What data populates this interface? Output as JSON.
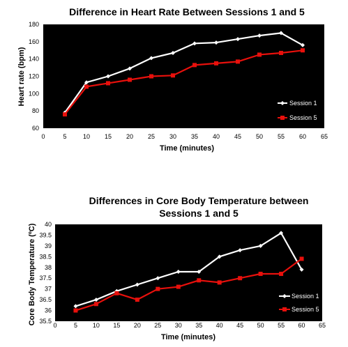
{
  "colors": {
    "session1": "#ffffff",
    "session5": "#e8100c",
    "plot_bg": "#000000"
  },
  "chart_data": [
    {
      "type": "line",
      "title": "Difference in Heart Rate Between Sessions 1 and 5",
      "xlabel": "Time (minutes)",
      "ylabel": "Heart rate (bpm)",
      "xlim": [
        0,
        65
      ],
      "ylim": [
        60,
        180
      ],
      "xticks": [
        "0",
        "5",
        "10",
        "15",
        "20",
        "25",
        "30",
        "35",
        "40",
        "45",
        "50",
        "55",
        "60",
        "65"
      ],
      "yticks": [
        "60",
        "80",
        "100",
        "120",
        "140",
        "160",
        "180"
      ],
      "x": [
        5,
        10,
        15,
        20,
        25,
        30,
        35,
        40,
        45,
        50,
        55,
        60
      ],
      "series": [
        {
          "name": "Session 1",
          "values": [
            78,
            113,
            120,
            129,
            141,
            147,
            158,
            159,
            163,
            167,
            170,
            156
          ]
        },
        {
          "name": "Session 5",
          "values": [
            76,
            108,
            112,
            116,
            120,
            121,
            133,
            135,
            137,
            145,
            147,
            150
          ]
        }
      ],
      "legend": "bottom-right",
      "grid": false
    },
    {
      "type": "line",
      "title": "Differences in Core Body Temperature between",
      "subtitle": "Sessions 1 and 5",
      "xlabel": "Time (minutes)",
      "ylabel": "Core Body Temperature (ºC)",
      "xlim": [
        0,
        65
      ],
      "ylim": [
        35.5,
        40
      ],
      "xticks": [
        "0",
        "5",
        "10",
        "15",
        "20",
        "25",
        "30",
        "35",
        "40",
        "45",
        "50",
        "55",
        "60",
        "65"
      ],
      "yticks": [
        "35.5",
        "36",
        "36.5",
        "37",
        "37.5",
        "38",
        "38.5",
        "39",
        "39.5",
        "40"
      ],
      "x": [
        5,
        10,
        15,
        20,
        25,
        30,
        35,
        40,
        45,
        50,
        55,
        60
      ],
      "series": [
        {
          "name": "Session 1",
          "values": [
            36.2,
            36.5,
            36.9,
            37.2,
            37.5,
            37.8,
            37.8,
            38.5,
            38.8,
            39.0,
            39.6,
            37.9
          ]
        },
        {
          "name": "Session 5",
          "values": [
            36.0,
            36.3,
            36.8,
            36.5,
            37.0,
            37.1,
            37.4,
            37.3,
            37.5,
            37.7,
            37.7,
            38.4
          ]
        }
      ],
      "legend": "bottom-right",
      "grid": false
    }
  ]
}
